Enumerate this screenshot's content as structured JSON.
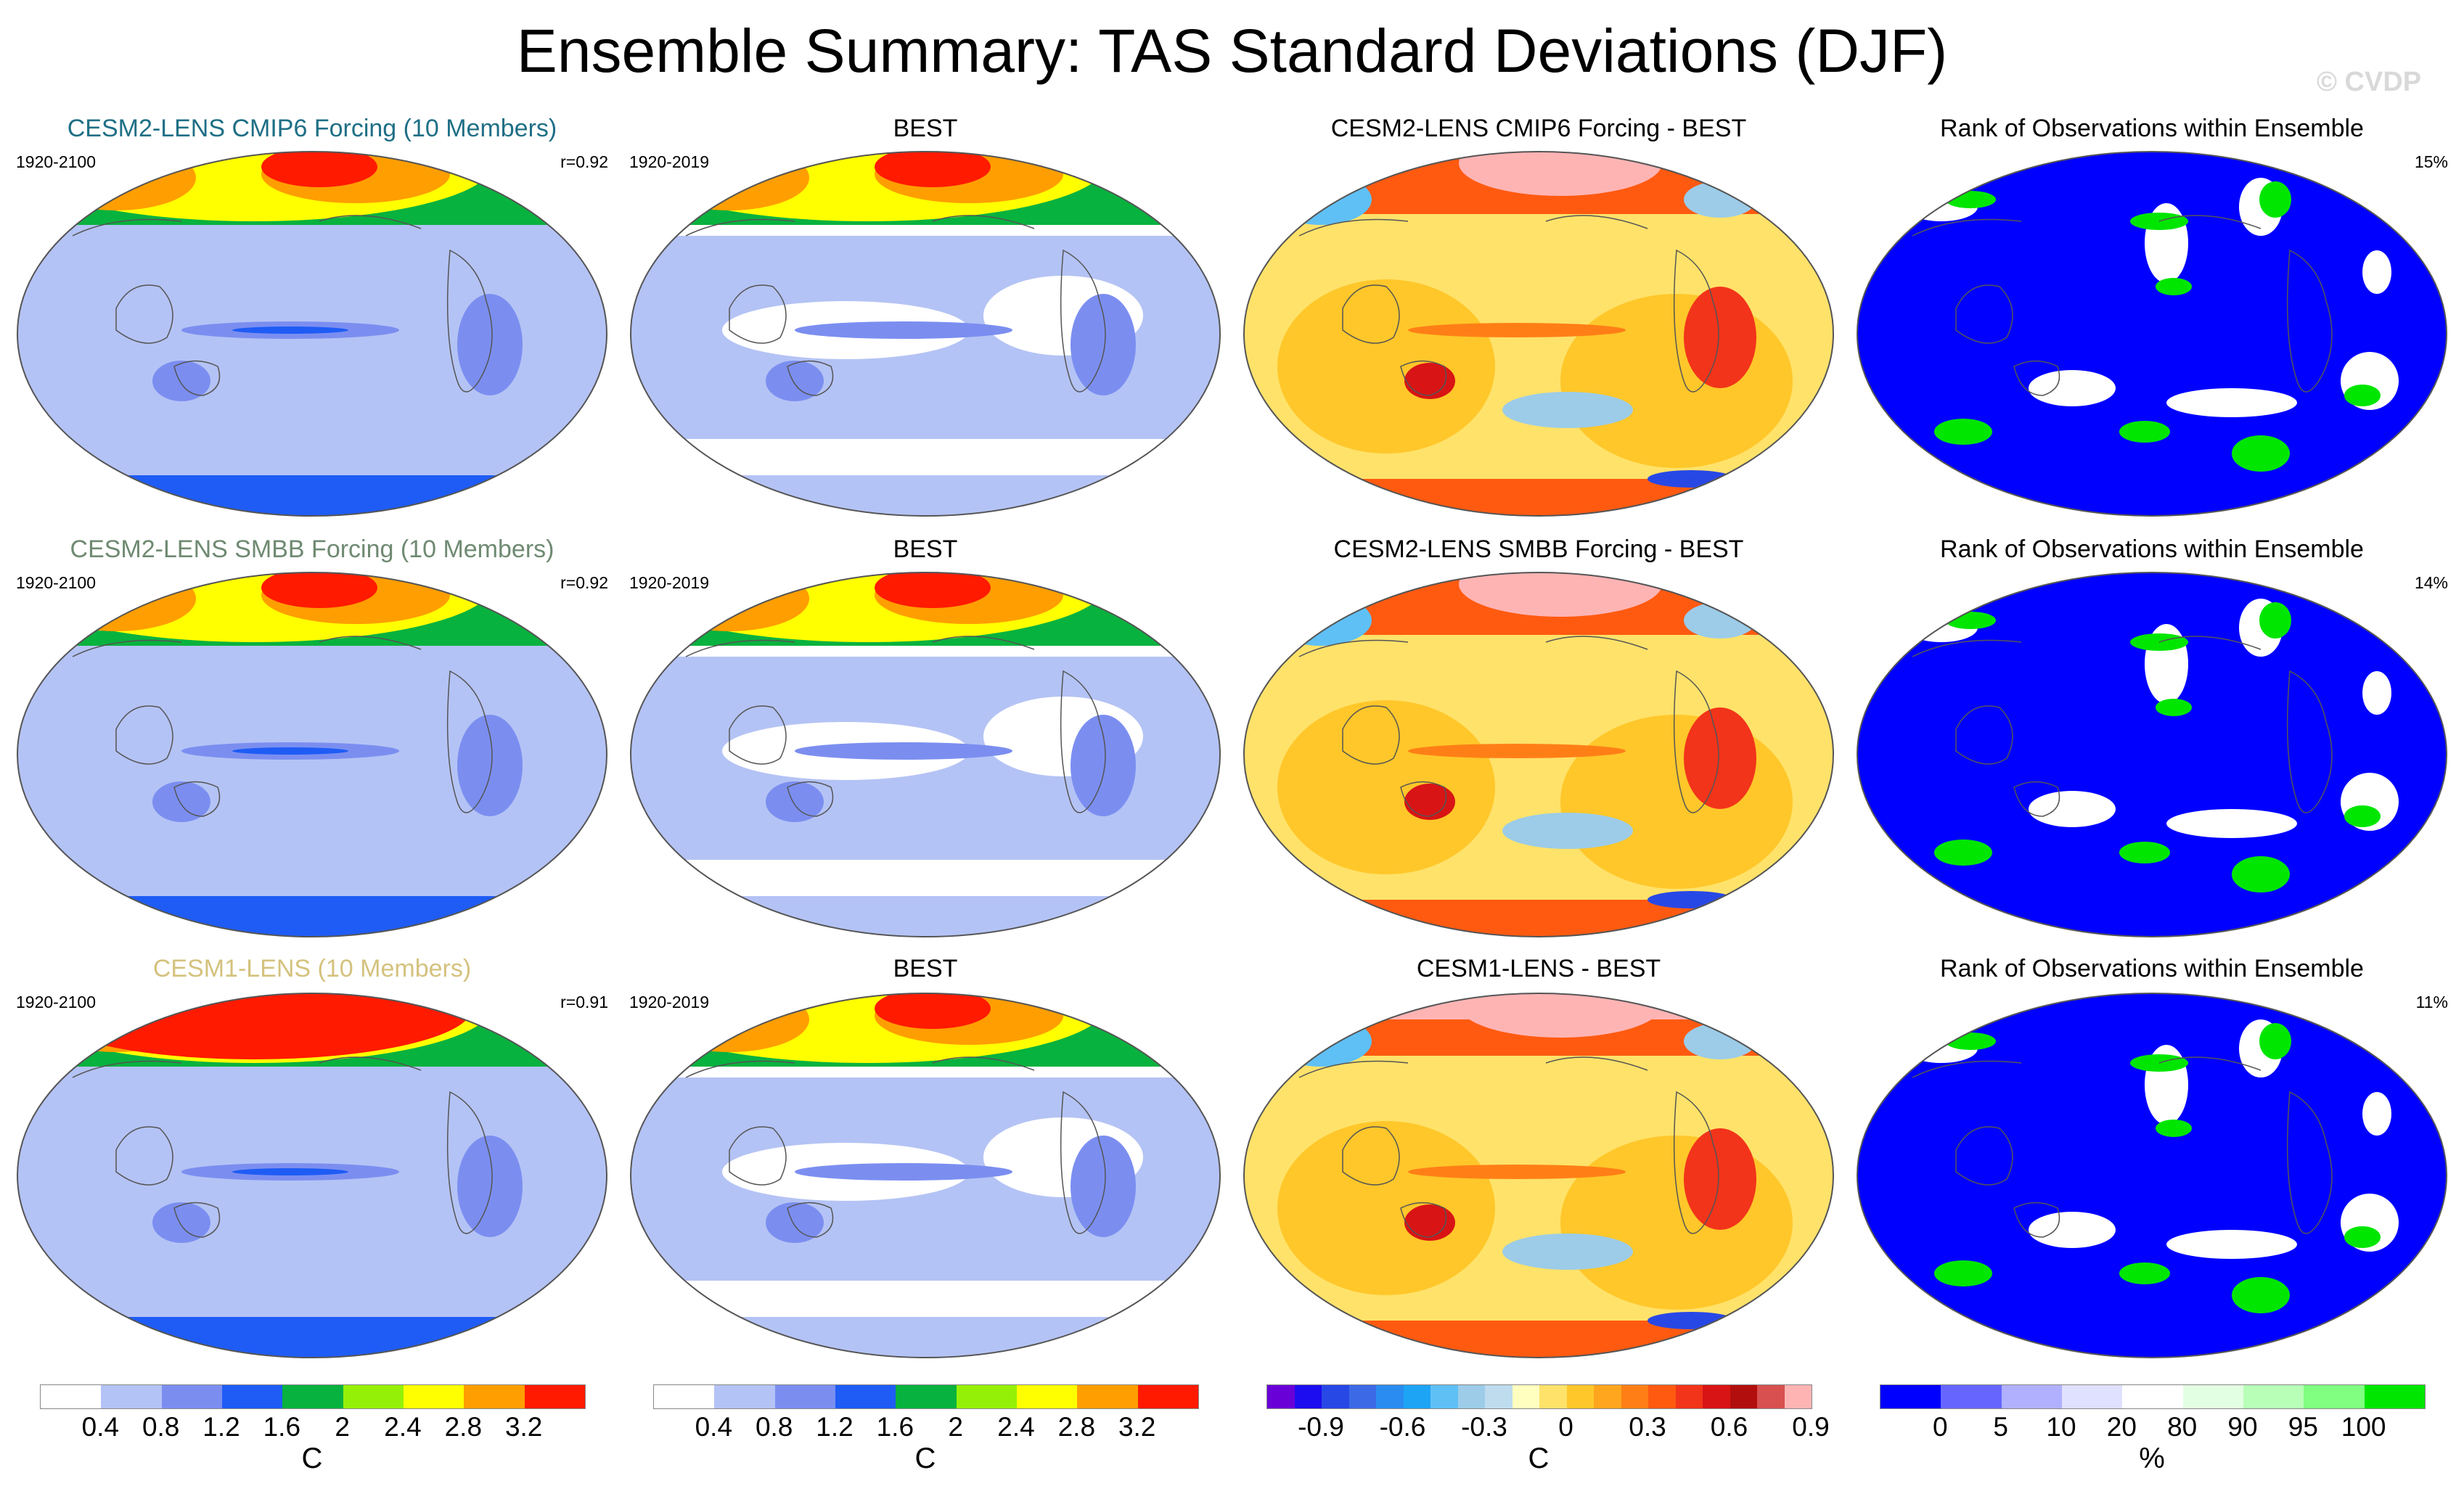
{
  "title": "Ensemble Summary: TAS Standard Deviations (DJF)",
  "watermark": "© CVDP",
  "rows": [
    {
      "model_title": "CESM2-LENS CMIP6 Forcing (10 Members)",
      "model_title_color": "#1f6f86",
      "model_period": "1920-2100",
      "model_r": "r=0.92",
      "obs_title": "BEST",
      "obs_period": "1920-2019",
      "diff_title": "CESM2-LENS CMIP6 Forcing - BEST",
      "rank_title": "Rank of Observations within Ensemble",
      "rank_pct": "15%"
    },
    {
      "model_title": "CESM2-LENS SMBB Forcing (10 Members)",
      "model_title_color": "#6f8a72",
      "model_period": "1920-2100",
      "model_r": "r=0.92",
      "obs_title": "BEST",
      "obs_period": "1920-2019",
      "diff_title": "CESM2-LENS SMBB Forcing - BEST",
      "rank_title": "Rank of Observations within Ensemble",
      "rank_pct": "14%"
    },
    {
      "model_title": "CESM1-LENS (10 Members)",
      "model_title_color": "#d4c27e",
      "model_period": "1920-2100",
      "model_r": "r=0.91",
      "obs_title": "BEST",
      "obs_period": "1920-2019",
      "diff_title": "CESM1-LENS - BEST",
      "rank_title": "Rank of Observations within Ensemble",
      "rank_pct": "11%"
    }
  ],
  "colorbars": [
    {
      "name": "std",
      "unit": "C",
      "colors": [
        "#ffffff",
        "#b4c3f5",
        "#7b8ef0",
        "#1e5cf5",
        "#08b23e",
        "#95f008",
        "#ffff00",
        "#ff9e00",
        "#ff1a00"
      ],
      "labels": [
        "0.4",
        "0.8",
        "1.2",
        "1.6",
        "2",
        "2.4",
        "2.8",
        "3.2"
      ]
    },
    {
      "name": "std-obs",
      "unit": "C",
      "colors": [
        "#ffffff",
        "#b4c3f5",
        "#7b8ef0",
        "#1e5cf5",
        "#08b23e",
        "#95f008",
        "#ffff00",
        "#ff9e00",
        "#ff1a00"
      ],
      "labels": [
        "0.4",
        "0.8",
        "1.2",
        "1.6",
        "2",
        "2.4",
        "2.8",
        "3.2"
      ]
    },
    {
      "name": "diff",
      "unit": "C",
      "colors": [
        "#6a00d8",
        "#1c0df0",
        "#2848e6",
        "#3c6ae6",
        "#2a8cf0",
        "#1ea4f5",
        "#5fc0f5",
        "#9ccce8",
        "#bfdcee",
        "#ffffc0",
        "#ffe26a",
        "#ffc72a",
        "#ffa61e",
        "#ff7f16",
        "#ff5a10",
        "#f2341a",
        "#d81414",
        "#b20e0e",
        "#d85050",
        "#ffb4b4"
      ],
      "labels": [
        "-0.9",
        "-0.6",
        "-0.3",
        "0",
        "0.3",
        "0.6",
        "0.9"
      ]
    },
    {
      "name": "rank",
      "unit": "%",
      "colors": [
        "#0000ff",
        "#6666ff",
        "#b0b0ff",
        "#e0e0ff",
        "#ffffff",
        "#e3ffe3",
        "#b8ffb8",
        "#80ff80",
        "#00e600"
      ],
      "labels": [
        "0",
        "5",
        "10",
        "20",
        "80",
        "90",
        "95",
        "100"
      ]
    }
  ]
}
